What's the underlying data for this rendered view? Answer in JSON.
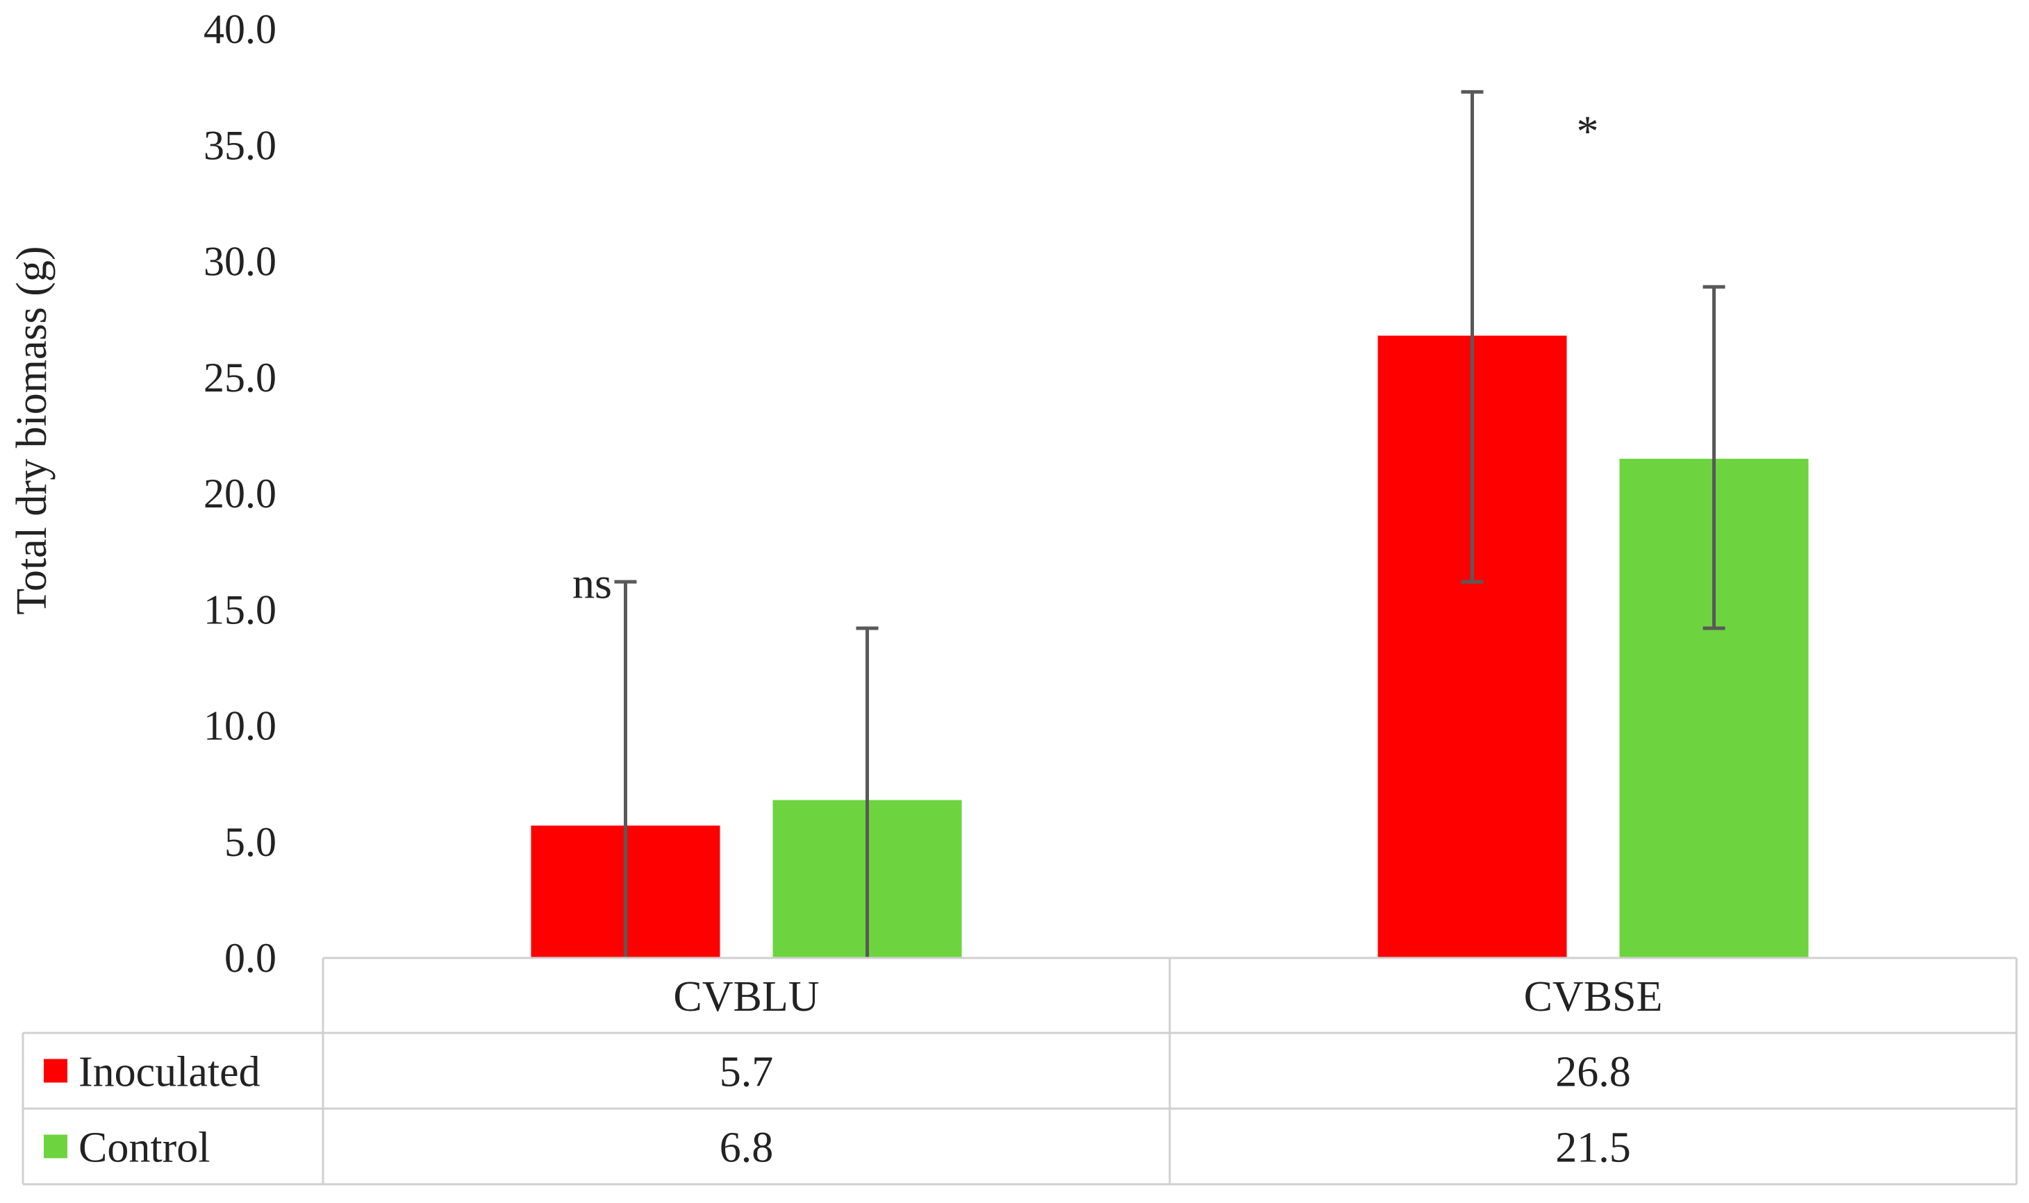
{
  "chart_data": {
    "type": "bar",
    "title": "",
    "xlabel": "",
    "ylabel": "Total dry biomass (g)",
    "ylim": [
      0,
      40
    ],
    "y_ticks": [
      "0.0",
      "5.0",
      "10.0",
      "15.0",
      "20.0",
      "25.0",
      "30.0",
      "35.0",
      "40.0"
    ],
    "grid": false,
    "legend_position": "data-table-left",
    "categories": [
      "CVBLU",
      "CVBSE"
    ],
    "series": [
      {
        "name": "Inoculated",
        "color": "#ff0000",
        "values": [
          5.7,
          26.8
        ],
        "value_labels": [
          "5.7",
          "26.8"
        ],
        "error_high": [
          16.2,
          37.3
        ],
        "error_low": [
          0,
          16.2
        ]
      },
      {
        "name": "Control",
        "color": "#6dd43f",
        "values": [
          6.8,
          21.5
        ],
        "value_labels": [
          "6.8",
          "21.5"
        ],
        "error_high": [
          14.2,
          28.9
        ],
        "error_low": [
          0,
          14.2
        ]
      }
    ],
    "annotations": [
      {
        "category": "CVBLU",
        "text": "ns"
      },
      {
        "category": "CVBSE",
        "text": "*"
      }
    ]
  }
}
